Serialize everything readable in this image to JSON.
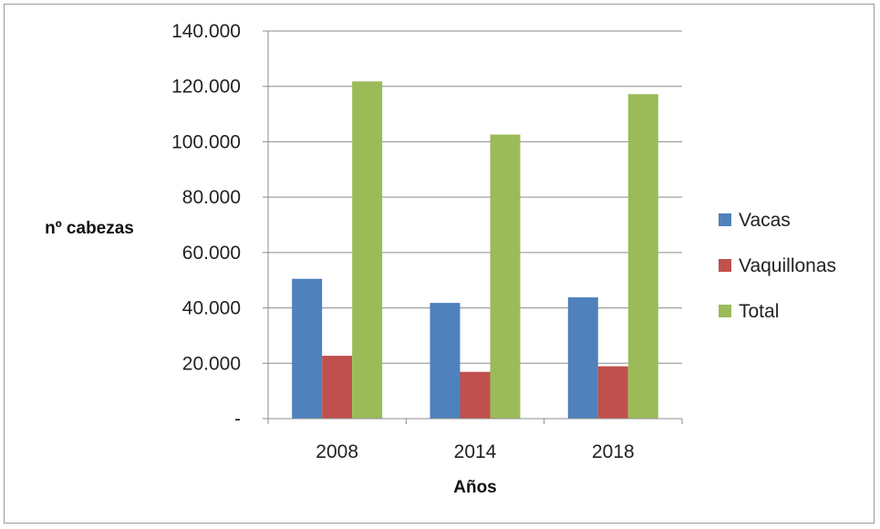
{
  "chart_data": {
    "type": "bar",
    "title": "",
    "xlabel": "Años",
    "ylabel": "nº cabezas",
    "categories": [
      "2008",
      "2014",
      "2018"
    ],
    "series": [
      {
        "name": "Vacas",
        "color": "#4f81bd",
        "values": [
          50500,
          41800,
          43800
        ]
      },
      {
        "name": "Vaquillonas",
        "color": "#c0504d",
        "values": [
          22700,
          16900,
          18900
        ]
      },
      {
        "name": "Total",
        "color": "#9bbb59",
        "values": [
          121800,
          102600,
          117200
        ]
      }
    ],
    "ylim": [
      0,
      140000
    ],
    "yticks": [
      0,
      20000,
      40000,
      60000,
      80000,
      100000,
      120000,
      140000
    ],
    "ytick_labels": [
      "-",
      "20.000",
      "40.000",
      "60.000",
      "80.000",
      "100.000",
      "120.000",
      "140.000"
    ],
    "grid": true,
    "legend_position": "right"
  }
}
